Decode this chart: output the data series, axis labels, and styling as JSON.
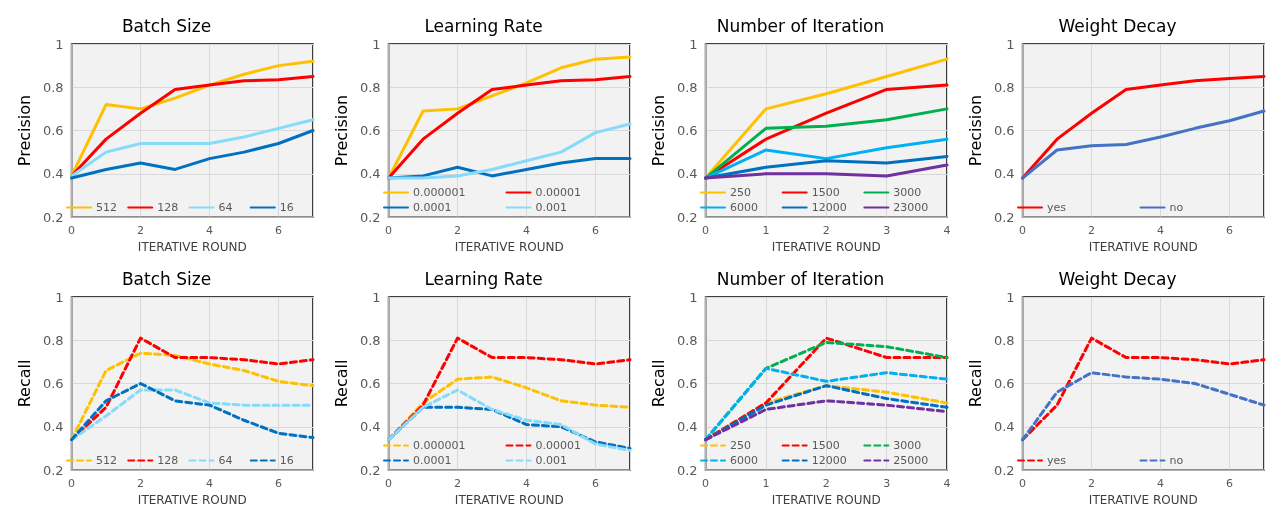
{
  "chart_data": [
    {
      "type": "line",
      "title": "Batch Size",
      "xlabel": "ITERATIVE ROUND",
      "ylabel": "Precision",
      "x": [
        0,
        1,
        2,
        3,
        4,
        5,
        6,
        7
      ],
      "xlim": [
        0,
        7
      ],
      "xticks": [
        0,
        2,
        4,
        6
      ],
      "ylim": [
        0.2,
        1
      ],
      "yticks": [
        0.2,
        0.4,
        0.6,
        0.8,
        1
      ],
      "grid": true,
      "legend": "bottom",
      "marker": "none",
      "line_style": "solid",
      "series": [
        {
          "name": "512",
          "color": "#ffc000",
          "values": [
            0.39,
            0.72,
            0.7,
            0.75,
            0.81,
            0.86,
            0.9,
            0.92
          ]
        },
        {
          "name": "128",
          "color": "#ff0000",
          "values": [
            0.39,
            0.56,
            0.68,
            0.79,
            0.81,
            0.83,
            0.835,
            0.85
          ]
        },
        {
          "name": "64",
          "color": "#85dbf9",
          "values": [
            0.39,
            0.5,
            0.54,
            0.54,
            0.54,
            0.57,
            0.61,
            0.65
          ]
        },
        {
          "name": "16",
          "color": "#0070c0",
          "values": [
            0.38,
            0.42,
            0.45,
            0.42,
            0.47,
            0.5,
            0.54,
            0.6
          ]
        }
      ]
    },
    {
      "type": "line",
      "title": "Learning Rate",
      "xlabel": "ITERATIVE ROUND",
      "ylabel": "Precision",
      "x": [
        0,
        1,
        2,
        3,
        4,
        5,
        6,
        7
      ],
      "xlim": [
        0,
        7
      ],
      "xticks": [
        0,
        2,
        4,
        6
      ],
      "ylim": [
        0.2,
        1
      ],
      "yticks": [
        0.2,
        0.4,
        0.6,
        0.8,
        1
      ],
      "grid": true,
      "legend": "bottom",
      "marker": "none",
      "line_style": "solid",
      "series": [
        {
          "name": "0.000001",
          "color": "#ffc000",
          "values": [
            0.38,
            0.69,
            0.7,
            0.76,
            0.82,
            0.89,
            0.93,
            0.94
          ]
        },
        {
          "name": "0.00001",
          "color": "#ff0000",
          "values": [
            0.38,
            0.56,
            0.68,
            0.79,
            0.81,
            0.83,
            0.835,
            0.85
          ]
        },
        {
          "name": "0.0001",
          "color": "#0070c0",
          "values": [
            0.38,
            0.39,
            0.43,
            0.39,
            0.42,
            0.45,
            0.47,
            0.47
          ]
        },
        {
          "name": "0.001",
          "color": "#85dbf9",
          "values": [
            0.38,
            0.38,
            0.39,
            0.42,
            0.46,
            0.5,
            0.59,
            0.63
          ]
        }
      ]
    },
    {
      "type": "line",
      "title": "Number of Iteration",
      "xlabel": "ITERATIVE ROUND",
      "ylabel": "Precision",
      "x": [
        0,
        1,
        2,
        3,
        4
      ],
      "xlim": [
        0,
        4
      ],
      "xticks": [
        0,
        1,
        2,
        3,
        4
      ],
      "ylim": [
        0.2,
        1
      ],
      "yticks": [
        0.2,
        0.4,
        0.6,
        0.8,
        1
      ],
      "grid": true,
      "legend": "bottom",
      "marker": "none",
      "line_style": "solid",
      "series": [
        {
          "name": "250",
          "color": "#ffc000",
          "values": [
            0.38,
            0.7,
            0.77,
            0.85,
            0.93
          ]
        },
        {
          "name": "1500",
          "color": "#ff0000",
          "values": [
            0.38,
            0.56,
            0.68,
            0.79,
            0.81
          ]
        },
        {
          "name": "3000",
          "color": "#00b050",
          "values": [
            0.38,
            0.61,
            0.62,
            0.65,
            0.7
          ]
        },
        {
          "name": "6000",
          "color": "#00b0f0",
          "values": [
            0.38,
            0.51,
            0.47,
            0.52,
            0.56
          ]
        },
        {
          "name": "12000",
          "color": "#0070c0",
          "values": [
            0.38,
            0.43,
            0.46,
            0.45,
            0.48
          ]
        },
        {
          "name": "23000",
          "color": "#7030a0",
          "values": [
            0.38,
            0.4,
            0.4,
            0.39,
            0.44
          ]
        }
      ]
    },
    {
      "type": "line",
      "title": "Weight Decay",
      "xlabel": "ITERATIVE ROUND",
      "ylabel": "Precision",
      "x": [
        0,
        1,
        2,
        3,
        4,
        5,
        6,
        7
      ],
      "xlim": [
        0,
        7
      ],
      "xticks": [
        0,
        2,
        4,
        6
      ],
      "ylim": [
        0.2,
        1
      ],
      "yticks": [
        0.2,
        0.4,
        0.6,
        0.8,
        1
      ],
      "grid": true,
      "legend": "bottom",
      "marker": "none",
      "line_style": "solid",
      "series": [
        {
          "name": "yes",
          "color": "#ff0000",
          "values": [
            0.38,
            0.56,
            0.68,
            0.79,
            0.81,
            0.83,
            0.84,
            0.85
          ]
        },
        {
          "name": "no",
          "color": "#4472c4",
          "values": [
            0.38,
            0.51,
            0.53,
            0.535,
            0.57,
            0.61,
            0.645,
            0.69
          ]
        }
      ]
    },
    {
      "type": "line",
      "title": "Batch Size",
      "xlabel": "ITERATIVE ROUND",
      "ylabel": "Recall",
      "x": [
        0,
        1,
        2,
        3,
        4,
        5,
        6,
        7
      ],
      "xlim": [
        0,
        7
      ],
      "xticks": [
        0,
        2,
        4,
        6
      ],
      "ylim": [
        0.2,
        1
      ],
      "yticks": [
        0.2,
        0.4,
        0.6,
        0.8,
        1
      ],
      "grid": true,
      "legend": "bottom",
      "marker": "none",
      "line_style": "dashed",
      "series": [
        {
          "name": "512",
          "color": "#ffc000",
          "values": [
            0.34,
            0.66,
            0.74,
            0.73,
            0.69,
            0.66,
            0.61,
            0.59
          ]
        },
        {
          "name": "128",
          "color": "#ff0000",
          "values": [
            0.34,
            0.49,
            0.81,
            0.72,
            0.72,
            0.71,
            0.69,
            0.71
          ]
        },
        {
          "name": "64",
          "color": "#85dbf9",
          "values": [
            0.34,
            0.45,
            0.57,
            0.57,
            0.51,
            0.5,
            0.5,
            0.5
          ]
        },
        {
          "name": "16",
          "color": "#0070c0",
          "values": [
            0.34,
            0.52,
            0.6,
            0.52,
            0.5,
            0.43,
            0.37,
            0.35
          ]
        }
      ]
    },
    {
      "type": "line",
      "title": "Learning Rate",
      "xlabel": "ITERATIVE ROUND",
      "ylabel": "Recall",
      "x": [
        0,
        1,
        2,
        3,
        4,
        5,
        6,
        7
      ],
      "xlim": [
        0,
        7
      ],
      "xticks": [
        0,
        2,
        4,
        6
      ],
      "ylim": [
        0.2,
        1
      ],
      "yticks": [
        0.2,
        0.4,
        0.6,
        0.8,
        1
      ],
      "grid": true,
      "legend": "bottom",
      "marker": "none",
      "line_style": "dashed",
      "series": [
        {
          "name": "0.000001",
          "color": "#ffc000",
          "values": [
            0.34,
            0.51,
            0.62,
            0.63,
            0.58,
            0.52,
            0.5,
            0.49
          ]
        },
        {
          "name": "0.00001",
          "color": "#ff0000",
          "values": [
            0.34,
            0.5,
            0.81,
            0.72,
            0.72,
            0.71,
            0.69,
            0.71
          ]
        },
        {
          "name": "0.0001",
          "color": "#0070c0",
          "values": [
            0.34,
            0.49,
            0.49,
            0.48,
            0.41,
            0.4,
            0.33,
            0.3
          ]
        },
        {
          "name": "0.001",
          "color": "#85dbf9",
          "values": [
            0.34,
            0.49,
            0.57,
            0.48,
            0.43,
            0.41,
            0.32,
            0.29
          ]
        }
      ]
    },
    {
      "type": "line",
      "title": "Number of Iteration",
      "xlabel": "ITERATIVE ROUND",
      "ylabel": "Recall",
      "x": [
        0,
        1,
        2,
        3,
        4
      ],
      "xlim": [
        0,
        4
      ],
      "xticks": [
        0,
        1,
        2,
        3,
        4
      ],
      "ylim": [
        0.2,
        1
      ],
      "yticks": [
        0.2,
        0.4,
        0.6,
        0.8,
        1
      ],
      "grid": true,
      "legend": "bottom",
      "marker": "none",
      "line_style": "dashed",
      "series": [
        {
          "name": "250",
          "color": "#ffc000",
          "values": [
            0.34,
            0.51,
            0.59,
            0.56,
            0.51
          ]
        },
        {
          "name": "1500",
          "color": "#ff0000",
          "values": [
            0.34,
            0.51,
            0.81,
            0.72,
            0.72
          ]
        },
        {
          "name": "3000",
          "color": "#00b050",
          "values": [
            0.34,
            0.67,
            0.79,
            0.77,
            0.72
          ]
        },
        {
          "name": "6000",
          "color": "#00b0f0",
          "values": [
            0.34,
            0.67,
            0.61,
            0.65,
            0.62
          ]
        },
        {
          "name": "12000",
          "color": "#0070c0",
          "values": [
            0.34,
            0.5,
            0.59,
            0.53,
            0.49
          ]
        },
        {
          "name": "25000",
          "color": "#7030a0",
          "values": [
            0.34,
            0.48,
            0.52,
            0.5,
            0.47
          ]
        }
      ]
    },
    {
      "type": "line",
      "title": "Weight Decay",
      "xlabel": "ITERATIVE ROUND",
      "ylabel": "Recall",
      "x": [
        0,
        1,
        2,
        3,
        4,
        5,
        6,
        7
      ],
      "xlim": [
        0,
        7
      ],
      "xticks": [
        0,
        2,
        4,
        6
      ],
      "ylim": [
        0.2,
        1
      ],
      "yticks": [
        0.2,
        0.4,
        0.6,
        0.8,
        1
      ],
      "grid": true,
      "legend": "bottom",
      "marker": "none",
      "line_style": "dashed",
      "series": [
        {
          "name": "yes",
          "color": "#ff0000",
          "values": [
            0.34,
            0.5,
            0.81,
            0.72,
            0.72,
            0.71,
            0.69,
            0.71
          ]
        },
        {
          "name": "no",
          "color": "#4472c4",
          "values": [
            0.34,
            0.56,
            0.65,
            0.63,
            0.62,
            0.6,
            0.55,
            0.5
          ]
        }
      ]
    }
  ]
}
